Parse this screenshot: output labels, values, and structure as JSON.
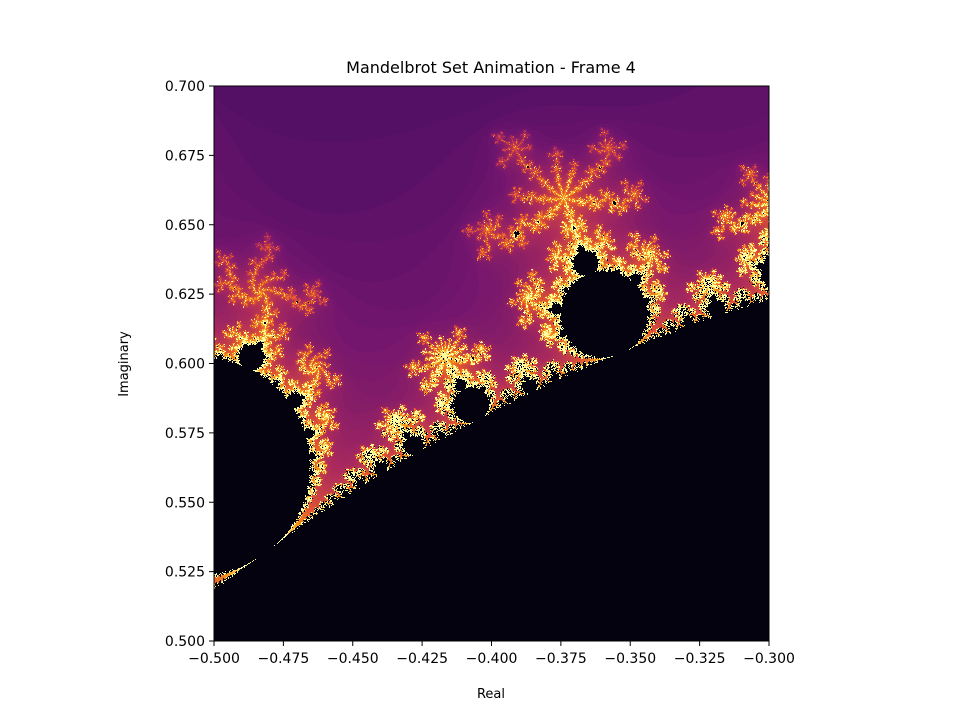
{
  "chart_data": {
    "type": "heatmap",
    "title": "Mandelbrot Set Animation - Frame 4",
    "xlabel": "Real",
    "ylabel": "Imaginary",
    "xlim": [
      -0.5,
      -0.3
    ],
    "ylim": [
      0.5,
      0.7
    ],
    "x_ticks": [
      -0.5,
      -0.475,
      -0.45,
      -0.425,
      -0.4,
      -0.375,
      -0.35,
      -0.325,
      -0.3
    ],
    "x_tick_labels": [
      "−0.500",
      "−0.475",
      "−0.450",
      "−0.425",
      "−0.400",
      "−0.375",
      "−0.350",
      "−0.325",
      "−0.300"
    ],
    "y_ticks": [
      0.5,
      0.525,
      0.55,
      0.575,
      0.6,
      0.625,
      0.65,
      0.675,
      0.7
    ],
    "y_tick_labels": [
      "0.500",
      "0.525",
      "0.550",
      "0.575",
      "0.600",
      "0.625",
      "0.650",
      "0.675",
      "0.700"
    ],
    "colormap": "inferno",
    "set_color": "#03020e",
    "grid": false,
    "legend": "none",
    "image": "escape-time iteration count of z -> z^2 + c over the plotted region of the complex plane"
  }
}
